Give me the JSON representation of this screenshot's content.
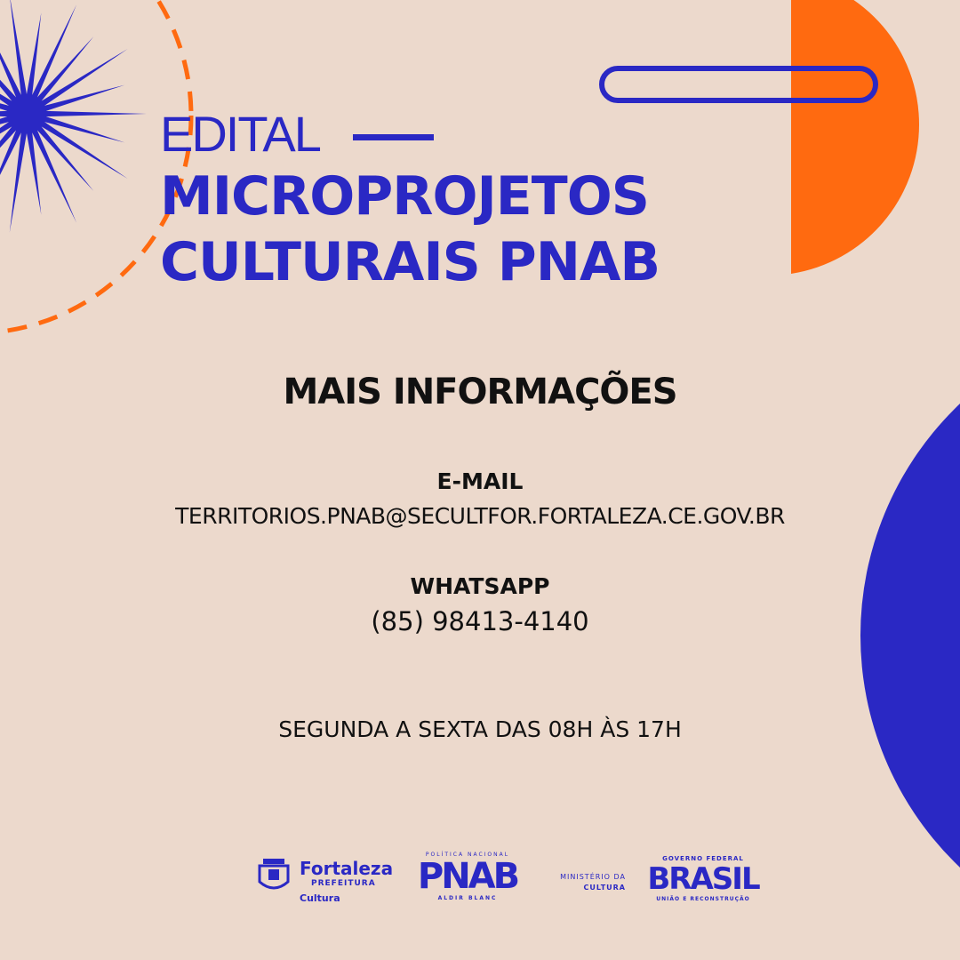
{
  "colors": {
    "background": "#ecd9cc",
    "blue": "#2a28c4",
    "orange": "#ff6a10",
    "text": "#111111"
  },
  "title": {
    "prefix": "EDITAL",
    "line1": "MICROPROJETOS",
    "line2": "CULTURAIS PNAB"
  },
  "info": {
    "heading": "MAIS INFORMAÇÕES",
    "email_label": "E-MAIL",
    "email": "TERRITORIOS.PNAB@SECULTFOR.FORTALEZA.CE.GOV.BR",
    "whatsapp_label": "WHATSAPP",
    "whatsapp": "(85) 98413-4140",
    "hours": "SEGUNDA A SEXTA DAS 08H ÀS 17H"
  },
  "logos": {
    "fortaleza": {
      "name": "Fortaleza",
      "sub": "PREFEITURA",
      "dept": "Cultura"
    },
    "pnab": {
      "top": "POLÍTICA NACIONAL",
      "name": "PNAB",
      "bottom": "ALDIR BLANC"
    },
    "ministerio": {
      "line1": "MINISTÉRIO DA",
      "line2": "CULTURA"
    },
    "brasil": {
      "top": "GOVERNO FEDERAL",
      "name": "BRASIL",
      "bottom": "UNIÃO E RECONSTRUÇÃO"
    }
  }
}
